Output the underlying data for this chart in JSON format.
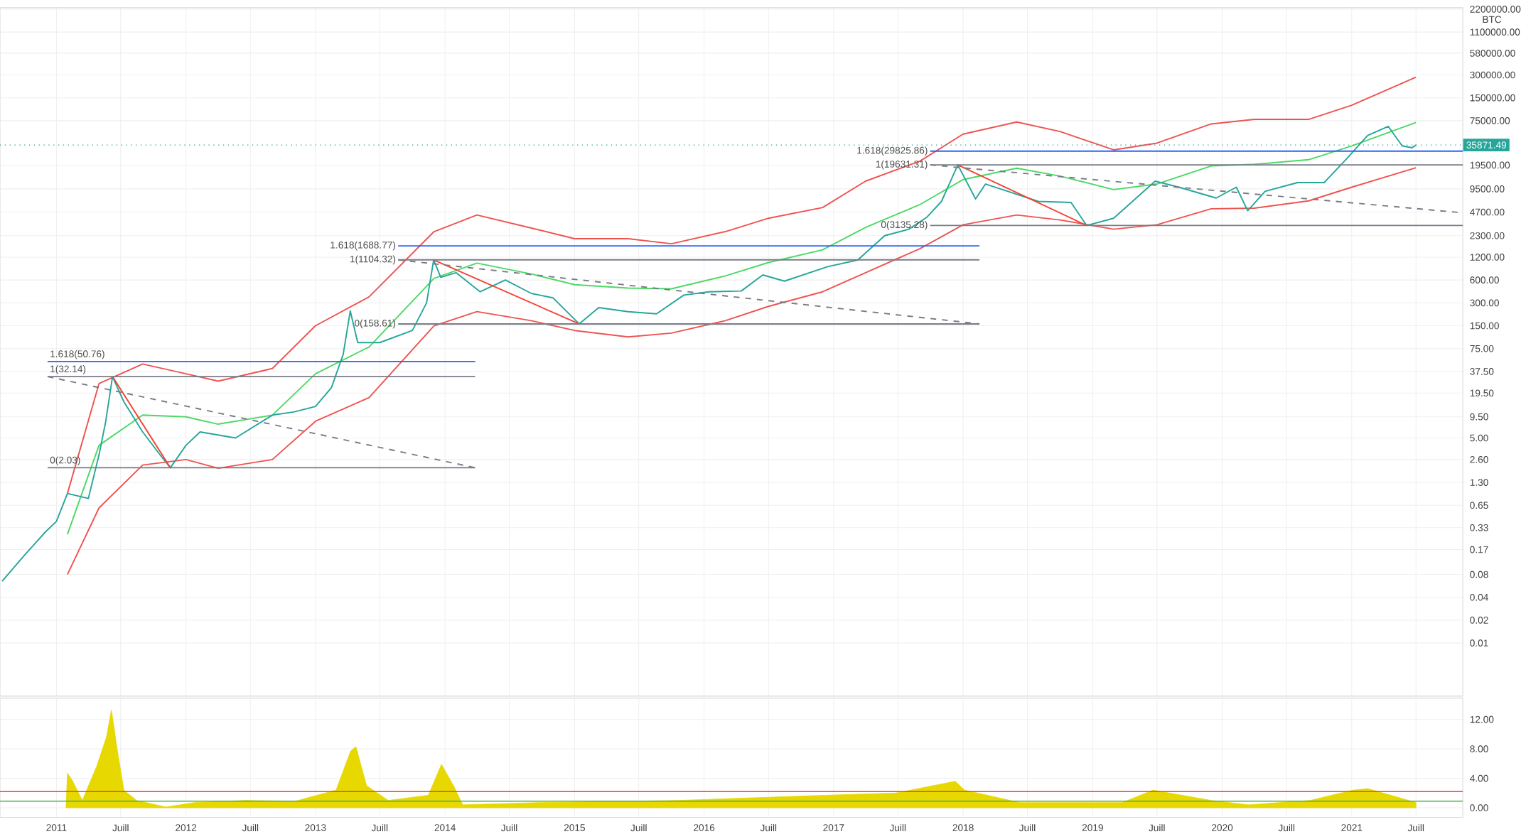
{
  "chart_data": [
    {
      "type": "line",
      "ylabel": "BTC",
      "log": "y",
      "grid": true,
      "tick_labels": "y",
      "xlim": [
        "2010-07-26",
        "2021-11-10"
      ],
      "ylim": [
        0.002,
        2300000
      ],
      "xticks": [
        {
          "value": "2011",
          "label": null
        },
        {
          "value": "2011-07",
          "label": null
        },
        {
          "value": "2012",
          "label": null
        },
        {
          "value": "2012-07",
          "label": null
        },
        {
          "value": "2013",
          "label": null
        },
        {
          "value": "2013-07",
          "label": null
        },
        {
          "value": "2014",
          "label": null
        },
        {
          "value": "2014-07",
          "label": null
        },
        {
          "value": "2015",
          "label": null
        },
        {
          "value": "2015-07",
          "label": null
        },
        {
          "value": "2016",
          "label": null
        },
        {
          "value": "2016-07",
          "label": null
        },
        {
          "value": "2017",
          "label": null
        },
        {
          "value": "2017-07",
          "label": null
        },
        {
          "value": "2018",
          "label": null
        },
        {
          "value": "2018-07",
          "label": null
        },
        {
          "value": "2019",
          "label": null
        },
        {
          "value": "2019-07",
          "label": null
        },
        {
          "value": "2020",
          "label": null
        },
        {
          "value": "2020-07",
          "label": null
        },
        {
          "value": "2021",
          "label": null
        },
        {
          "value": "2021-07",
          "label": null
        }
      ],
      "yticks": [
        {
          "value": 0.01,
          "label": "0.01"
        },
        {
          "value": 0.02,
          "label": "0.02"
        },
        {
          "value": 0.04,
          "label": "0.04"
        },
        {
          "value": 0.08,
          "label": "0.08"
        },
        {
          "value": 0.17,
          "label": "0.17"
        },
        {
          "value": 0.33,
          "label": "0.33"
        },
        {
          "value": 0.65,
          "label": "0.65"
        },
        {
          "value": 1.3,
          "label": "1.30"
        },
        {
          "value": 2.6,
          "label": "2.60"
        },
        {
          "value": 5,
          "label": "5.00"
        },
        {
          "value": 9.5,
          "label": "9.50"
        },
        {
          "value": 19.5,
          "label": "19.50"
        },
        {
          "value": 37.5,
          "label": "37.50"
        },
        {
          "value": 75,
          "label": "75.00"
        },
        {
          "value": 150,
          "label": "150.00"
        },
        {
          "value": 300,
          "label": "300.00"
        },
        {
          "value": 600,
          "label": "600.00"
        },
        {
          "value": 1200,
          "label": "1200.00"
        },
        {
          "value": 2300,
          "label": "2300.00"
        },
        {
          "value": 4700,
          "label": "4700.00"
        },
        {
          "value": 9500,
          "label": "9500.00"
        },
        {
          "value": 19500,
          "label": "19500.00"
        },
        {
          "value": 75000,
          "label": "75000.00"
        },
        {
          "value": 150000,
          "label": "150000.00"
        },
        {
          "value": 300000,
          "label": "300000.00"
        },
        {
          "value": 580000,
          "label": "580000.00"
        },
        {
          "value": 1100000,
          "label": "1100000.00"
        },
        {
          "value": 2200000,
          "label": "2200000.00"
        }
      ],
      "series": [
        {
          "color": "#ef5350",
          "x": [
            "2011-02",
            "2011-05",
            "2011-09",
            "2012-01",
            "2012-04",
            "2012-09",
            "2013-01",
            "2013-06",
            "2013-12",
            "2014-04",
            "2014-09",
            "2015-01",
            "2015-06",
            "2015-10",
            "2016-03",
            "2016-07",
            "2016-12",
            "2017-04",
            "2017-09",
            "2018-01",
            "2018-06",
            "2018-10",
            "2019-03",
            "2019-07",
            "2019-12",
            "2020-04",
            "2020-09",
            "2021-01",
            "2021-07"
          ],
          "values": [
            0.93,
            26,
            47,
            35,
            28,
            41,
            150,
            360,
            2600,
            4300,
            2900,
            2100,
            2100,
            1800,
            2600,
            3900,
            5400,
            12000,
            22000,
            50000,
            72000,
            54000,
            31000,
            38000,
            68000,
            78000,
            78000,
            120000,
            280000
          ]
        },
        {
          "color": "#ef5350",
          "x": [
            "2011-02",
            "2011-05",
            "2011-09",
            "2012-01",
            "2012-04",
            "2012-09",
            "2013-01",
            "2013-06",
            "2013-12",
            "2014-04",
            "2014-09",
            "2015-01",
            "2015-06",
            "2015-10",
            "2016-03",
            "2016-07",
            "2016-12",
            "2017-04",
            "2017-09",
            "2018-01",
            "2018-06",
            "2018-10",
            "2019-03",
            "2019-07",
            "2019-12",
            "2020-04",
            "2020-09",
            "2021-01",
            "2021-07"
          ],
          "values": [
            0.08,
            0.6,
            2.2,
            2.6,
            2.0,
            2.6,
            8.3,
            17,
            150,
            230,
            175,
            130,
            107,
            120,
            175,
            270,
            420,
            750,
            1550,
            3200,
            4300,
            3700,
            2800,
            3200,
            5200,
            5300,
            6600,
            10000,
            18000
          ]
        },
        {
          "color": "#4cd964",
          "x": [
            "2011-02",
            "2011-05",
            "2011-09",
            "2012-01",
            "2012-04",
            "2012-09",
            "2013-01",
            "2013-06",
            "2013-12",
            "2014-04",
            "2014-09",
            "2015-01",
            "2015-06",
            "2015-10",
            "2016-03",
            "2016-07",
            "2016-12",
            "2017-04",
            "2017-09",
            "2018-01",
            "2018-06",
            "2018-10",
            "2019-03",
            "2019-07",
            "2019-12",
            "2020-04",
            "2020-09",
            "2021-01",
            "2021-07"
          ],
          "values": [
            0.27,
            4,
            10,
            9.5,
            7.6,
            10,
            35,
            79,
            630,
            1000,
            720,
            520,
            470,
            460,
            680,
            1020,
            1500,
            2950,
            5900,
            12600,
            17800,
            14000,
            9300,
            11000,
            19000,
            20000,
            23000,
            35000,
            71000
          ]
        },
        {
          "color": "#26a69a",
          "x": [
            "2010-08",
            "2010-10",
            "2010-12",
            "2011-01",
            "2011-02",
            "2011-04",
            "2011-05",
            "2011-05-20",
            "2011-06-08",
            "2011-07-10",
            "2011-09",
            "2011-10-20",
            "2011-11-18",
            "2012-01",
            "2012-02-10",
            "2012-05-20",
            "2012-09",
            "2012-11",
            "2013-01",
            "2013-02-15",
            "2013-03-20",
            "2013-04-09",
            "2013-04-30",
            "2013-07",
            "2013-10",
            "2013-11-10",
            "2013-11-30",
            "2013-12-20",
            "2014-02",
            "2014-04-10",
            "2014-06-20",
            "2014-09",
            "2014-11",
            "2015-01-14",
            "2015-03-10",
            "2015-06",
            "2015-08-20",
            "2015-11-05",
            "2016-01-15",
            "2016-04-15",
            "2016-06-15",
            "2016-08-15",
            "2016-12-15",
            "2017-03-10",
            "2017-05-25",
            "2017-08",
            "2017-09-20",
            "2017-11",
            "2017-12-17",
            "2018-02-05",
            "2018-03-05",
            "2018-05",
            "2018-08",
            "2018-11",
            "2018-12-15",
            "2019-03",
            "2019-06-26",
            "2019-09",
            "2019-12-15",
            "2020-02-10",
            "2020-03-13",
            "2020-05",
            "2020-08",
            "2020-10-15",
            "2020-12-15",
            "2021-02-15",
            "2021-04-14",
            "2021-05-23",
            "2021-06-20",
            "2021-07-01"
          ],
          "values": [
            0.065,
            0.14,
            0.29,
            0.4,
            0.93,
            0.8,
            3,
            8.3,
            32.14,
            15,
            6,
            3,
            2.03,
            4,
            6,
            5,
            10,
            11,
            13,
            23,
            63,
            235,
            90,
            90,
            130,
            300,
            1104.32,
            650,
            750,
            420,
            600,
            400,
            350,
            158.61,
            260,
            230,
            215,
            380,
            420,
            430,
            700,
            580,
            900,
            1100,
            2300,
            2800,
            4000,
            6500,
            19631.31,
            7000,
            11000,
            9000,
            6500,
            6300,
            3135.28,
            3900,
            12000,
            10000,
            7200,
            10000,
            4900,
            8800,
            11500,
            11500,
            23000,
            48000,
            63000,
            35000,
            33000,
            35871.49
          ]
        },
        {
          "color": "#f44336",
          "x": [
            "2011-06-08",
            "2011-11-18"
          ],
          "values": [
            32.14,
            2.03
          ]
        },
        {
          "color": "#f44336",
          "x": [
            "2013-11-30",
            "2015-01-14"
          ],
          "values": [
            1104.32,
            158.61
          ]
        },
        {
          "color": "#f44336",
          "x": [
            "2017-12-17",
            "2018-12-15"
          ],
          "values": [
            19631.31,
            3135.28
          ]
        },
        {
          "color": "#787b86",
          "line_style": "dashed",
          "x": [
            "2010-12-07",
            "2014-03-27"
          ],
          "values": [
            32.14,
            2.03
          ]
        },
        {
          "color": "#787b86",
          "line_style": "dashed",
          "x": [
            "2013-08-22",
            "2018-02-16"
          ],
          "values": [
            1104.32,
            158.61
          ]
        },
        {
          "color": "#787b86",
          "line_style": "dashed",
          "x": [
            "2017-09-30",
            "2021-11-10"
          ],
          "values": [
            19631.31,
            4600
          ]
        },
        {
          "color": "#2962ff",
          "x": [
            "2010-12-07",
            "2014-03-27"
          ],
          "values": [
            50.76,
            50.76
          ]
        },
        {
          "color": "#787b86",
          "x": [
            "2010-12-07",
            "2014-03-27"
          ],
          "values": [
            32.14,
            32.14
          ]
        },
        {
          "color": "#787b86",
          "x": [
            "2010-12-07",
            "2014-03-27"
          ],
          "values": [
            2.03,
            2.03
          ]
        },
        {
          "color": "#2962ff",
          "x": [
            "2013-08-22",
            "2018-02-16"
          ],
          "values": [
            1688.77,
            1688.77
          ]
        },
        {
          "color": "#787b86",
          "x": [
            "2013-08-22",
            "2018-02-16"
          ],
          "values": [
            1104.32,
            1104.32
          ]
        },
        {
          "color": "#787b86",
          "x": [
            "2013-08-22",
            "2018-02-16"
          ],
          "values": [
            158.61,
            158.61
          ]
        },
        {
          "color": "#2962ff",
          "x": [
            "2017-09-30",
            "2021-11-10"
          ],
          "values": [
            29825.86,
            29825.86
          ]
        },
        {
          "color": "#787b86",
          "x": [
            "2017-09-30",
            "2021-11-10"
          ],
          "values": [
            19631.31,
            19631.31
          ]
        },
        {
          "color": "#787b86",
          "x": [
            "2017-09-30",
            "2021-11-10"
          ],
          "values": [
            3135.28,
            3135.28
          ]
        }
      ],
      "ref_lines": [
        {
          "axis": "y",
          "value": 35871.49,
          "label": "35871.49",
          "color": "#26a69a",
          "line_style": "dotted"
        }
      ],
      "annotations": [
        {
          "text": "1.618(50.76)",
          "x": "2010-12-07",
          "y": 50.76
        },
        {
          "text": "1(32.14)",
          "x": "2010-12-07",
          "y": 32.14
        },
        {
          "text": "0(2.03)",
          "x": "2010-12-07",
          "y": 2.03
        },
        {
          "text": "1.618(1688.77)",
          "x": "2013-08-22",
          "y": 1688.77
        },
        {
          "text": "1(1104.32)",
          "x": "2013-08-22",
          "y": 1104.32
        },
        {
          "text": "0(158.61)",
          "x": "2013-08-22",
          "y": 158.61
        },
        {
          "text": "1.618(29825.86)",
          "x": "2017-09-30",
          "y": 29825.86
        },
        {
          "text": "1(19631.31)",
          "x": "2017-09-30",
          "y": 19631.31
        },
        {
          "text": "0(3135.28)",
          "x": "2017-09-30",
          "y": 3135.28
        }
      ]
    },
    {
      "type": "area",
      "grid": true,
      "color": "#e6d800",
      "xlim": [
        "2010-07-26",
        "2021-11-10"
      ],
      "ylim": [
        -1.3,
        14.9
      ],
      "xticks": [
        "2011",
        {
          "value": "2011-07",
          "label": "Juill"
        },
        "2012",
        {
          "value": "2012-07",
          "label": "Juill"
        },
        "2013",
        {
          "value": "2013-07",
          "label": "Juill"
        },
        "2014",
        {
          "value": "2014-07",
          "label": "Juill"
        },
        "2015",
        {
          "value": "2015-07",
          "label": "Juill"
        },
        "2016",
        {
          "value": "2016-07",
          "label": "Juill"
        },
        "2017",
        {
          "value": "2017-07",
          "label": "Juill"
        },
        "2018",
        {
          "value": "2018-07",
          "label": "Juill"
        },
        "2019",
        {
          "value": "2019-07",
          "label": "Juill"
        },
        "2020",
        {
          "value": "2020-07",
          "label": "Juill"
        },
        "2021",
        {
          "value": "2021-07",
          "label": "Juill"
        }
      ],
      "yticks": [
        {
          "value": 0,
          "label": "0.00"
        },
        {
          "value": 4,
          "label": "4.00"
        },
        {
          "value": 8,
          "label": "8.00"
        },
        {
          "value": 12,
          "label": "12.00"
        }
      ],
      "x": [
        "2011-01-28",
        "2011-02-01",
        "2011-02-15",
        "2011-03-15",
        "2011-04-25",
        "2011-05-22",
        "2011-06-05",
        "2011-06-20",
        "2011-07-10",
        "2011-08-15",
        "2011-11-05",
        "2012-01-25",
        "2012-06-15",
        "2012-11-05",
        "2013-02-28",
        "2013-04-10",
        "2013-04-25",
        "2013-05-25",
        "2013-07-25",
        "2013-11-15",
        "2013-12-22",
        "2014-01-25",
        "2014-02-20",
        "2014-09-20",
        "2015-10-20",
        "2016-12-10",
        "2017-06-25",
        "2017-12-10",
        "2018-01-05",
        "2018-06-10",
        "2019-03-25",
        "2019-06-20",
        "2019-12-01",
        "2020-03-15",
        "2020-09-05",
        "2021-01-05",
        "2021-02-15",
        "2021-05-20",
        "2021-07-01"
      ],
      "values": [
        0,
        4.7,
        3.7,
        1,
        5.7,
        9.6,
        13.3,
        8.3,
        2.4,
        1,
        0.1,
        0.7,
        1,
        0.9,
        2.4,
        7.7,
        8.3,
        3,
        1,
        1.7,
        5.9,
        3,
        0.4,
        0.7,
        1,
        1.7,
        2,
        3.6,
        2.4,
        0.7,
        0.7,
        2.4,
        1,
        0.4,
        1,
        2.4,
        2.6,
        1.3,
        0.7
      ],
      "ref_lines": [
        {
          "axis": "y",
          "value": 2.2,
          "color": "#f44336"
        },
        {
          "axis": "y",
          "value": 0.9,
          "color": "#4caf50"
        }
      ]
    }
  ]
}
